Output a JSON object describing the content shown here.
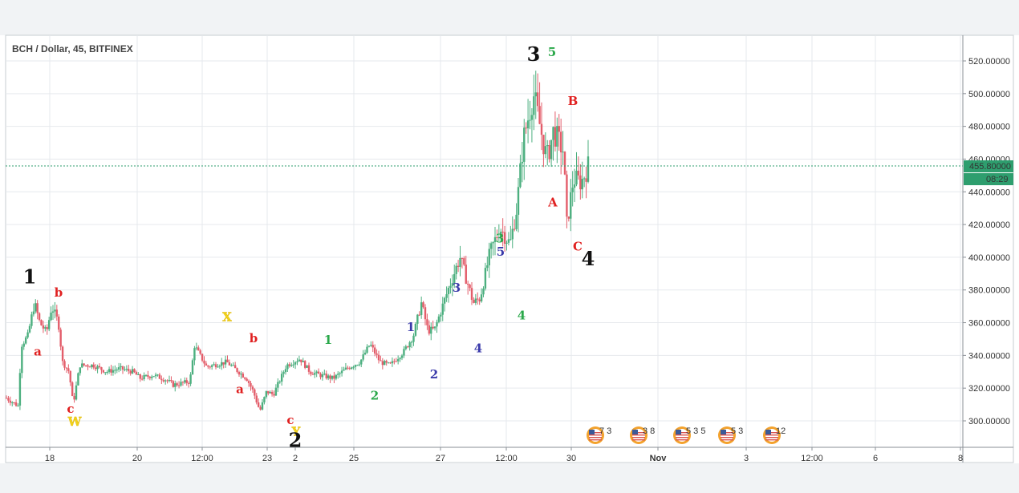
{
  "chart_title": "BCH / Dollar, 45, BITFINEX",
  "colors": {
    "up": "#4caf7f",
    "down": "#e35d6a",
    "grid": "#e6e9ed",
    "axis_text": "#333333",
    "last_price_bg": "#2e9e6e",
    "black": "#111111",
    "red": "#e02020",
    "green": "#2aa84a",
    "blue": "#3a3aaa",
    "yellow": "#f2d21b"
  },
  "price_axis": {
    "ticks": [
      "520.00000",
      "500.00000",
      "480.00000",
      "460.00000",
      "440.00000",
      "420.00000",
      "400.00000",
      "380.00000",
      "360.00000",
      "340.00000",
      "320.00000",
      "300.00000"
    ],
    "last_price": "455.80000",
    "countdown": "08:29"
  },
  "time_axis": {
    "ticks": [
      "18",
      "20",
      "12:00",
      "23",
      "2",
      "25",
      "27",
      "12:00",
      "30",
      "Nov",
      "3",
      "12:00",
      "6",
      "8"
    ]
  },
  "wave_labels": [
    {
      "text": "1",
      "color": "black",
      "price": 384
    },
    {
      "text": "b",
      "color": "red",
      "price": 376
    },
    {
      "text": "a",
      "color": "red",
      "price": 340
    },
    {
      "text": "c",
      "color": "red",
      "price": 305
    },
    {
      "text": "W",
      "color": "yellow",
      "price": 297
    },
    {
      "text": "X",
      "color": "yellow",
      "price": 361
    },
    {
      "text": "b",
      "color": "red",
      "price": 348
    },
    {
      "text": "a",
      "color": "red",
      "price": 317
    },
    {
      "text": "c",
      "color": "red",
      "price": 298
    },
    {
      "text": "Y",
      "color": "yellow",
      "price": 291
    },
    {
      "text": "2",
      "color": "black",
      "price": 284
    },
    {
      "text": "1",
      "color": "green",
      "price": 347
    },
    {
      "text": "2",
      "color": "green",
      "price": 313
    },
    {
      "text": "1",
      "color": "blue",
      "price": 355
    },
    {
      "text": "2",
      "color": "blue",
      "price": 326
    },
    {
      "text": "3",
      "color": "blue",
      "price": 379
    },
    {
      "text": "4",
      "color": "blue",
      "price": 342
    },
    {
      "text": "3",
      "color": "green",
      "price": 409
    },
    {
      "text": "5",
      "color": "blue",
      "price": 401
    },
    {
      "text": "4",
      "color": "green",
      "price": 362
    },
    {
      "text": "3",
      "color": "black",
      "price": 520
    },
    {
      "text": "5",
      "color": "green",
      "price": 523
    },
    {
      "text": "B",
      "color": "red",
      "price": 493
    },
    {
      "text": "A",
      "color": "red",
      "price": 431
    },
    {
      "text": "C",
      "color": "red",
      "price": 404
    },
    {
      "text": "4",
      "color": "black",
      "price": 395
    }
  ],
  "events": [
    {
      "text": "7 3"
    },
    {
      "text": "3 8"
    },
    {
      "text": "5 3 5"
    },
    {
      "text": "5 3"
    },
    {
      "text": "12"
    }
  ],
  "chart_data": {
    "type": "candlestick",
    "title": "BCH / Dollar, 45, BITFINEX",
    "ylim": [
      286,
      530
    ],
    "anchors": [
      [
        0,
        314
      ],
      [
        0.018,
        309
      ],
      [
        0.022,
        346
      ],
      [
        0.032,
        352
      ],
      [
        0.042,
        372
      ],
      [
        0.05,
        360
      ],
      [
        0.06,
        354
      ],
      [
        0.068,
        370
      ],
      [
        0.078,
        360
      ],
      [
        0.084,
        336
      ],
      [
        0.094,
        330
      ],
      [
        0.1,
        310
      ],
      [
        0.11,
        334
      ],
      [
        0.13,
        334
      ],
      [
        0.15,
        330
      ],
      [
        0.17,
        332
      ],
      [
        0.19,
        330
      ],
      [
        0.2,
        326
      ],
      [
        0.22,
        328
      ],
      [
        0.24,
        325
      ],
      [
        0.25,
        322
      ],
      [
        0.275,
        324
      ],
      [
        0.282,
        346
      ],
      [
        0.3,
        333
      ],
      [
        0.33,
        336
      ],
      [
        0.36,
        326
      ],
      [
        0.37,
        318
      ],
      [
        0.38,
        306
      ],
      [
        0.39,
        318
      ],
      [
        0.4,
        316
      ],
      [
        0.42,
        334
      ],
      [
        0.44,
        338
      ],
      [
        0.455,
        330
      ],
      [
        0.47,
        328
      ],
      [
        0.49,
        326
      ],
      [
        0.51,
        332
      ],
      [
        0.53,
        336
      ],
      [
        0.545,
        347
      ],
      [
        0.56,
        336
      ],
      [
        0.575,
        334
      ],
      [
        0.595,
        342
      ],
      [
        0.61,
        352
      ],
      [
        0.622,
        372
      ],
      [
        0.632,
        355
      ],
      [
        0.642,
        356
      ],
      [
        0.662,
        380
      ],
      [
        0.68,
        400
      ],
      [
        0.7,
        372
      ],
      [
        0.71,
        375
      ],
      [
        0.725,
        403
      ],
      [
        0.74,
        418
      ],
      [
        0.755,
        408
      ],
      [
        0.765,
        430
      ],
      [
        0.775,
        472
      ],
      [
        0.79,
        500
      ],
      [
        0.81,
        460
      ],
      [
        0.82,
        477
      ],
      [
        0.835,
        465
      ],
      [
        0.84,
        420
      ],
      [
        0.85,
        448
      ],
      [
        0.862,
        446
      ],
      [
        0.872,
        455.8
      ]
    ]
  }
}
